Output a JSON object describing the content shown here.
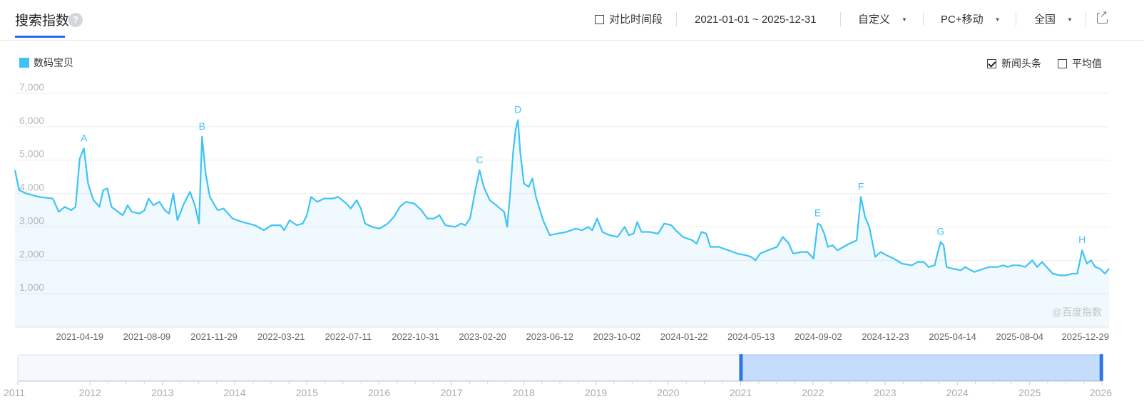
{
  "header": {
    "title": "搜索指数",
    "help_icon": "question-icon",
    "compare_label": "对比时间段",
    "date_range": "2021-01-01 ~ 2025-12-31",
    "range_mode": "自定义",
    "device": "PC+移动",
    "region": "全国",
    "export_icon": "external-link-icon"
  },
  "legend": {
    "label": "数码宝贝",
    "color": "#3ec3f6"
  },
  "options": {
    "news_label": "新闻头条",
    "news_checked": true,
    "avg_label": "平均值",
    "avg_checked": false
  },
  "watermark": "@百度指数",
  "chart_data": {
    "type": "area",
    "series": [
      {
        "name": "数码宝贝",
        "color": "#3ec3f6"
      }
    ],
    "x_range": [
      "2021-01-01",
      "2025-12-31"
    ],
    "xticks": [
      "2021-04-19",
      "2021-08-09",
      "2021-11-29",
      "2022-03-21",
      "2022-07-11",
      "2022-10-31",
      "2023-02-20",
      "2023-06-12",
      "2023-10-02",
      "2024-01-22",
      "2024-05-13",
      "2024-09-02",
      "2024-12-23",
      "2025-04-14",
      "2025-08-04",
      "2025-12-29"
    ],
    "yticks": [
      1000,
      2000,
      3000,
      4000,
      5000,
      6000,
      7000
    ],
    "ylim": [
      0,
      7000
    ],
    "points": [
      [
        "2021-01-01",
        4700
      ],
      [
        "2021-01-08",
        4100
      ],
      [
        "2021-01-20",
        4000
      ],
      [
        "2021-02-10",
        3900
      ],
      [
        "2021-03-05",
        3850
      ],
      [
        "2021-03-15",
        3450
      ],
      [
        "2021-03-25",
        3600
      ],
      [
        "2021-04-05",
        3500
      ],
      [
        "2021-04-12",
        3600
      ],
      [
        "2021-04-19",
        5050
      ],
      [
        "2021-04-26",
        5350
      ],
      [
        "2021-05-03",
        4300
      ],
      [
        "2021-05-12",
        3800
      ],
      [
        "2021-05-22",
        3600
      ],
      [
        "2021-05-28",
        4100
      ],
      [
        "2021-06-04",
        4150
      ],
      [
        "2021-06-11",
        3600
      ],
      [
        "2021-06-22",
        3450
      ],
      [
        "2021-06-30",
        3350
      ],
      [
        "2021-07-08",
        3650
      ],
      [
        "2021-07-15",
        3450
      ],
      [
        "2021-07-28",
        3400
      ],
      [
        "2021-08-05",
        3500
      ],
      [
        "2021-08-12",
        3850
      ],
      [
        "2021-08-20",
        3650
      ],
      [
        "2021-08-30",
        3750
      ],
      [
        "2021-09-08",
        3500
      ],
      [
        "2021-09-15",
        3400
      ],
      [
        "2021-09-22",
        4000
      ],
      [
        "2021-09-29",
        3200
      ],
      [
        "2021-10-10",
        3700
      ],
      [
        "2021-10-20",
        4050
      ],
      [
        "2021-10-28",
        3650
      ],
      [
        "2021-11-04",
        3100
      ],
      [
        "2021-11-09",
        5700
      ],
      [
        "2021-11-15",
        4600
      ],
      [
        "2021-11-22",
        3900
      ],
      [
        "2021-12-05",
        3500
      ],
      [
        "2021-12-15",
        3550
      ],
      [
        "2021-12-30",
        3250
      ],
      [
        "2022-01-15",
        3150
      ],
      [
        "2022-02-05",
        3050
      ],
      [
        "2022-02-20",
        2900
      ],
      [
        "2022-03-05",
        3050
      ],
      [
        "2022-03-20",
        3050
      ],
      [
        "2022-03-26",
        2900
      ],
      [
        "2022-04-04",
        3200
      ],
      [
        "2022-04-16",
        3050
      ],
      [
        "2022-04-26",
        3100
      ],
      [
        "2022-05-03",
        3350
      ],
      [
        "2022-05-10",
        3900
      ],
      [
        "2022-05-20",
        3750
      ],
      [
        "2022-06-01",
        3850
      ],
      [
        "2022-06-15",
        3850
      ],
      [
        "2022-06-24",
        3900
      ],
      [
        "2022-07-08",
        3700
      ],
      [
        "2022-07-15",
        3550
      ],
      [
        "2022-07-25",
        3800
      ],
      [
        "2022-08-01",
        3550
      ],
      [
        "2022-08-08",
        3100
      ],
      [
        "2022-08-20",
        3000
      ],
      [
        "2022-09-01",
        2950
      ],
      [
        "2022-09-15",
        3100
      ],
      [
        "2022-09-25",
        3300
      ],
      [
        "2022-10-05",
        3600
      ],
      [
        "2022-10-15",
        3750
      ],
      [
        "2022-10-29",
        3700
      ],
      [
        "2022-11-10",
        3500
      ],
      [
        "2022-11-20",
        3250
      ],
      [
        "2022-12-01",
        3250
      ],
      [
        "2022-12-10",
        3350
      ],
      [
        "2022-12-20",
        3050
      ],
      [
        "2023-01-05",
        3000
      ],
      [
        "2023-01-15",
        3100
      ],
      [
        "2023-01-22",
        3050
      ],
      [
        "2023-01-30",
        3250
      ],
      [
        "2023-02-08",
        4100
      ],
      [
        "2023-02-15",
        4700
      ],
      [
        "2023-02-22",
        4200
      ],
      [
        "2023-03-04",
        3800
      ],
      [
        "2023-03-18",
        3600
      ],
      [
        "2023-03-28",
        3450
      ],
      [
        "2023-04-02",
        3000
      ],
      [
        "2023-04-07",
        4000
      ],
      [
        "2023-04-12",
        5250
      ],
      [
        "2023-04-16",
        5900
      ],
      [
        "2023-04-20",
        6200
      ],
      [
        "2023-04-24",
        5200
      ],
      [
        "2023-04-30",
        4300
      ],
      [
        "2023-05-08",
        4200
      ],
      [
        "2023-05-14",
        4450
      ],
      [
        "2023-05-20",
        3900
      ],
      [
        "2023-06-01",
        3200
      ],
      [
        "2023-06-12",
        2750
      ],
      [
        "2023-06-25",
        2800
      ],
      [
        "2023-07-10",
        2850
      ],
      [
        "2023-07-25",
        2950
      ],
      [
        "2023-08-05",
        2900
      ],
      [
        "2023-08-15",
        3000
      ],
      [
        "2023-08-22",
        2900
      ],
      [
        "2023-08-30",
        3250
      ],
      [
        "2023-09-08",
        2850
      ],
      [
        "2023-09-20",
        2750
      ],
      [
        "2023-10-03",
        2700
      ],
      [
        "2023-10-15",
        3000
      ],
      [
        "2023-10-22",
        2750
      ],
      [
        "2023-10-30",
        2800
      ],
      [
        "2023-11-05",
        3150
      ],
      [
        "2023-11-12",
        2850
      ],
      [
        "2023-11-25",
        2850
      ],
      [
        "2023-12-10",
        2800
      ],
      [
        "2023-12-20",
        3100
      ],
      [
        "2024-01-01",
        3050
      ],
      [
        "2024-01-08",
        2900
      ],
      [
        "2024-01-20",
        2700
      ],
      [
        "2024-02-05",
        2600
      ],
      [
        "2024-02-12",
        2500
      ],
      [
        "2024-02-20",
        2850
      ],
      [
        "2024-02-28",
        2800
      ],
      [
        "2024-03-06",
        2400
      ],
      [
        "2024-03-20",
        2400
      ],
      [
        "2024-04-05",
        2300
      ],
      [
        "2024-04-20",
        2200
      ],
      [
        "2024-05-05",
        2150
      ],
      [
        "2024-05-13",
        2100
      ],
      [
        "2024-05-20",
        2000
      ],
      [
        "2024-05-28",
        2200
      ],
      [
        "2024-06-10",
        2300
      ],
      [
        "2024-06-25",
        2400
      ],
      [
        "2024-07-05",
        2700
      ],
      [
        "2024-07-15",
        2500
      ],
      [
        "2024-07-22",
        2200
      ],
      [
        "2024-08-05",
        2250
      ],
      [
        "2024-08-15",
        2250
      ],
      [
        "2024-08-25",
        2050
      ],
      [
        "2024-09-01",
        3100
      ],
      [
        "2024-09-06",
        3050
      ],
      [
        "2024-09-12",
        2800
      ],
      [
        "2024-09-18",
        2400
      ],
      [
        "2024-09-26",
        2450
      ],
      [
        "2024-10-04",
        2300
      ],
      [
        "2024-10-14",
        2400
      ],
      [
        "2024-10-24",
        2500
      ],
      [
        "2024-11-05",
        2600
      ],
      [
        "2024-11-12",
        3900
      ],
      [
        "2024-11-19",
        3300
      ],
      [
        "2024-11-26",
        3000
      ],
      [
        "2024-12-06",
        2100
      ],
      [
        "2024-12-15",
        2250
      ],
      [
        "2024-12-25",
        2150
      ],
      [
        "2025-01-06",
        2050
      ],
      [
        "2025-01-20",
        1900
      ],
      [
        "2025-02-05",
        1850
      ],
      [
        "2025-02-15",
        1950
      ],
      [
        "2025-02-25",
        1950
      ],
      [
        "2025-03-05",
        1800
      ],
      [
        "2025-03-15",
        1850
      ],
      [
        "2025-03-25",
        2550
      ],
      [
        "2025-03-30",
        2450
      ],
      [
        "2025-04-04",
        1800
      ],
      [
        "2025-04-14",
        1750
      ],
      [
        "2025-04-28",
        1700
      ],
      [
        "2025-05-05",
        1800
      ],
      [
        "2025-05-20",
        1650
      ],
      [
        "2025-06-05",
        1750
      ],
      [
        "2025-06-15",
        1800
      ],
      [
        "2025-06-28",
        1800
      ],
      [
        "2025-07-08",
        1850
      ],
      [
        "2025-07-15",
        1800
      ],
      [
        "2025-07-23",
        1850
      ],
      [
        "2025-08-03",
        1850
      ],
      [
        "2025-08-13",
        1800
      ],
      [
        "2025-08-25",
        2000
      ],
      [
        "2025-09-02",
        1800
      ],
      [
        "2025-09-10",
        1950
      ],
      [
        "2025-09-18",
        1800
      ],
      [
        "2025-09-28",
        1600
      ],
      [
        "2025-10-10",
        1550
      ],
      [
        "2025-10-20",
        1550
      ],
      [
        "2025-10-30",
        1600
      ],
      [
        "2025-11-08",
        1600
      ],
      [
        "2025-11-16",
        2300
      ],
      [
        "2025-11-24",
        1900
      ],
      [
        "2025-12-01",
        2000
      ],
      [
        "2025-12-08",
        1800
      ],
      [
        "2025-12-16",
        1750
      ],
      [
        "2025-12-24",
        1600
      ],
      [
        "2025-12-31",
        1750
      ]
    ],
    "annotations": [
      {
        "label": "A",
        "date": "2021-04-26",
        "value": 5350
      },
      {
        "label": "B",
        "date": "2021-11-09",
        "value": 5700
      },
      {
        "label": "C",
        "date": "2023-02-15",
        "value": 4700
      },
      {
        "label": "D",
        "date": "2023-04-20",
        "value": 6200
      },
      {
        "label": "E",
        "date": "2024-09-01",
        "value": 3100
      },
      {
        "label": "F",
        "date": "2024-11-12",
        "value": 3900
      },
      {
        "label": "G",
        "date": "2025-03-25",
        "value": 2550
      },
      {
        "label": "H",
        "date": "2025-11-16",
        "value": 2300
      }
    ],
    "grid": true
  },
  "navigator": {
    "years": [
      "2011",
      "2012",
      "2013",
      "2014",
      "2015",
      "2016",
      "2017",
      "2018",
      "2019",
      "2020",
      "2021",
      "2022",
      "2023",
      "2024",
      "2025",
      "2026"
    ],
    "full_range": [
      "2011-01-01",
      "2026-01-01"
    ],
    "selected_range": [
      "2021-01-01",
      "2025-12-31"
    ]
  }
}
